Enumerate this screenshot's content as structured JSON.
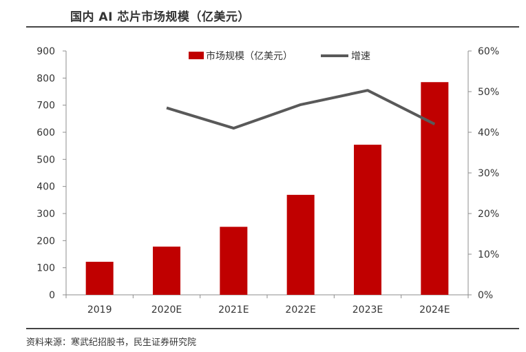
{
  "title": "国内 AI 芯片市场规模（亿美元）",
  "source": "资料来源：寒武纪招股书，民生证券研究院",
  "colors": {
    "bar": "#C00000",
    "line": "#595959",
    "axis": "#8C8C8C",
    "text": "#333333"
  },
  "chart_data": {
    "type": "bar",
    "title": "国内 AI 芯片市场规模（亿美元）",
    "categories": [
      "2019",
      "2020E",
      "2021E",
      "2022E",
      "2023E",
      "2024E"
    ],
    "series": [
      {
        "name": "市场规模（亿美元）",
        "type": "bar",
        "axis": "left",
        "values": [
          122,
          178,
          251,
          369,
          554,
          785
        ]
      },
      {
        "name": "增速",
        "type": "line",
        "axis": "right",
        "values": [
          null,
          46.0,
          41.0,
          46.8,
          50.3,
          42.0
        ]
      }
    ],
    "y_left": {
      "ylim": [
        0,
        900
      ],
      "ticks": [
        "0",
        "100",
        "200",
        "300",
        "400",
        "500",
        "600",
        "700",
        "800",
        "900"
      ]
    },
    "y_right": {
      "ylim": [
        0,
        60
      ],
      "ticks": [
        "0%",
        "10%",
        "20%",
        "30%",
        "40%",
        "50%",
        "60%"
      ]
    },
    "grid": false,
    "legend": "top-center"
  }
}
